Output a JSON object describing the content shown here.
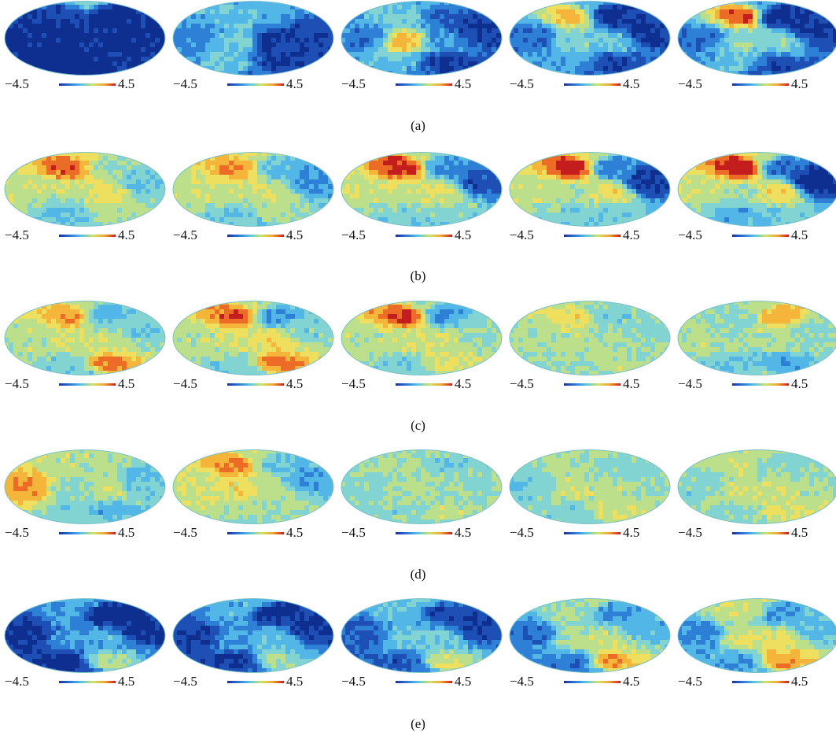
{
  "figure": {
    "colorbar": {
      "min_label": "−4.5",
      "max_label": "4.5"
    },
    "palette": [
      "#0e2f8f",
      "#1d4fb5",
      "#2e7fd6",
      "#52b7e6",
      "#82d4d2",
      "#bcdf8c",
      "#eee05e",
      "#f5b53b",
      "#ec6b26",
      "#c41d1d"
    ],
    "rows": [
      {
        "caption": "(a)",
        "levels": [
          [
            -4.0,
            -3.6,
            -4.0,
            -4.4,
            -4.4,
            -4.0,
            -3.8,
            -3.9,
            -0.6,
            -4.4
          ],
          [
            -2.0,
            -1.0,
            -0.6,
            -0.8,
            -1.4,
            -3.8,
            -3.6,
            -3.4,
            -1.4,
            -2.6
          ],
          [
            -2.4,
            -0.6,
            2.2,
            -1.2,
            -3.0,
            -1.6,
            -4.0,
            -3.6,
            -1.4,
            -2.6
          ],
          [
            -2.6,
            2.4,
            -0.4,
            -1.4,
            -4.0,
            -0.6,
            -3.6,
            -3.8,
            -1.6,
            -2.8
          ],
          [
            -2.6,
            3.6,
            -0.2,
            -1.0,
            -4.2,
            -0.2,
            -3.6,
            -3.8,
            -1.4,
            -2.6
          ]
        ]
      },
      {
        "caption": "(b)",
        "levels": [
          [
            0.6,
            3.4,
            0.4,
            -1.2,
            0.0,
            1.4,
            0.4,
            -1.0,
            1.0,
            -0.8
          ],
          [
            0.6,
            2.8,
            0.6,
            -0.8,
            -1.2,
            1.0,
            0.2,
            -2.2,
            0.8,
            -0.8
          ],
          [
            0.8,
            4.2,
            0.6,
            -0.6,
            -2.2,
            1.2,
            -0.4,
            -3.2,
            0.6,
            -1.0
          ],
          [
            0.6,
            4.4,
            0.2,
            -0.6,
            -2.4,
            1.4,
            -0.6,
            -3.8,
            0.8,
            -1.0
          ],
          [
            0.6,
            4.5,
            0.0,
            -1.4,
            -2.8,
            1.6,
            -0.6,
            -4.2,
            1.0,
            -1.0
          ]
        ]
      },
      {
        "caption": "(c)",
        "levels": [
          [
            0.4,
            2.6,
            0.6,
            -0.8,
            -1.4,
            0.8,
            3.0,
            -0.6,
            0.2,
            -0.6
          ],
          [
            0.4,
            3.4,
            0.8,
            -0.8,
            -2.0,
            1.4,
            3.2,
            -0.4,
            0.4,
            -0.4
          ],
          [
            0.4,
            3.8,
            0.6,
            -0.8,
            -2.0,
            0.8,
            1.2,
            -0.2,
            0.2,
            -0.6
          ],
          [
            0.2,
            1.4,
            0.4,
            -0.2,
            -0.6,
            0.2,
            0.4,
            -0.4,
            0.2,
            -0.2
          ],
          [
            0.4,
            -0.4,
            0.2,
            -1.0,
            2.4,
            0.4,
            -1.6,
            -0.4,
            0.4,
            -0.2
          ]
        ]
      },
      {
        "caption": "(d)",
        "levels": [
          [
            2.6,
            0.4,
            -0.4,
            -0.6,
            0.4,
            0.6,
            -1.4,
            -1.0,
            0.4,
            -0.4
          ],
          [
            0.6,
            2.8,
            1.4,
            0.2,
            -0.8,
            0.4,
            0.2,
            -1.6,
            0.6,
            -0.4
          ],
          [
            -0.4,
            0.2,
            0.4,
            -0.4,
            -0.6,
            0.2,
            0.6,
            -0.4,
            0.2,
            -0.4
          ],
          [
            -0.6,
            0.4,
            0.6,
            -0.6,
            -0.4,
            0.4,
            0.8,
            -0.2,
            0.4,
            -0.4
          ],
          [
            -0.4,
            0.6,
            0.8,
            -0.4,
            -0.4,
            0.6,
            1.2,
            0.0,
            0.4,
            -0.2
          ]
        ]
      },
      {
        "caption": "(e)",
        "levels": [
          [
            -4.0,
            -1.6,
            -1.8,
            -4.2,
            -4.4,
            -1.4,
            0.4,
            -4.0,
            -1.2,
            -3.0
          ],
          [
            -3.6,
            -1.4,
            -1.6,
            -3.8,
            -4.0,
            -1.0,
            0.2,
            -3.8,
            -1.2,
            -2.8
          ],
          [
            -3.0,
            -1.0,
            -0.8,
            -3.2,
            -3.4,
            -0.8,
            1.0,
            -3.6,
            -0.8,
            -2.4
          ],
          [
            -2.6,
            0.2,
            0.4,
            -2.6,
            -2.0,
            0.6,
            2.6,
            -1.4,
            0.2,
            -1.6
          ],
          [
            -2.2,
            0.8,
            1.0,
            -2.0,
            -1.8,
            1.2,
            2.8,
            -1.2,
            0.6,
            -1.4
          ]
        ]
      }
    ]
  }
}
